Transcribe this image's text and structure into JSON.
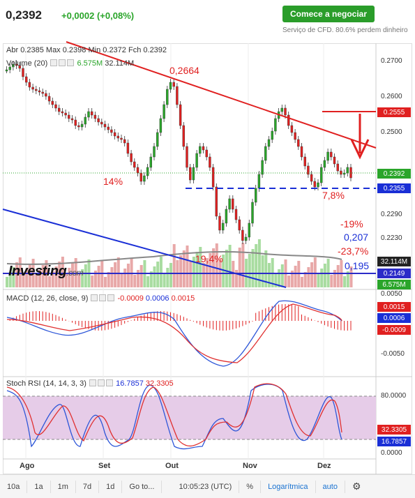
{
  "header": {
    "price": "0,2392",
    "change": "+0,0002 (+0,08%)",
    "cta_label": "Comece a negociar",
    "disclaimer": "Serviço de CFD. 80.6% perdem dinheiro"
  },
  "legend": {
    "abr_label": "Abr",
    "abr": "0.2385",
    "max_label": "Max",
    "max": "0.2398",
    "min_label": "Min",
    "min": "0.2372",
    "fch_label": "Fch",
    "fch": "0.2392",
    "volume_label": "Volume (20)",
    "volume_a": "6.575M",
    "volume_b": "32.114M"
  },
  "price_axis": [
    "0.2700",
    "0.2600",
    "0.2500",
    "0.2290",
    "0.2230"
  ],
  "price_tags": {
    "resist": "0.2555",
    "last": "0.2392",
    "support": "0.2355",
    "vol_avg": "32.114M",
    "low_line": "0.2149",
    "vol": "6.575M"
  },
  "annotations": {
    "peak": "0,2664",
    "pct14": "14%",
    "pct78": "7,8%",
    "pct19": "-19%",
    "v207": "0,207",
    "pct237": "-23,7%",
    "pct194": "19,4%",
    "v195": "0,195"
  },
  "logo": {
    "text": "Investing",
    "suffix": ".com"
  },
  "macd": {
    "label": "MACD (12, 26, close, 9)",
    "v1": "-0.0009",
    "v2": "0.0006",
    "v3": "0.0015",
    "axis": [
      "0.0050",
      "-0.0050"
    ],
    "tags": [
      "0.0015",
      "0.0006",
      "-0.0009"
    ]
  },
  "rsi": {
    "label": "Stoch RSI (14, 14, 3, 3)",
    "v1": "16.7857",
    "v2": "32.3305",
    "axis": [
      "80.0000",
      "0.0000"
    ],
    "tags": [
      "32.3305",
      "16.7857"
    ]
  },
  "dates": [
    "Ago",
    "Set",
    "Out",
    "Nov",
    "Dez"
  ],
  "toolbar": {
    "items": [
      "10a",
      "1a",
      "1m",
      "7d",
      "1d",
      "Go to...",
      "10:05:23 (UTC)",
      "%",
      "Logarítmica",
      "auto"
    ]
  },
  "colors": {
    "up": "#2aa52a",
    "down": "#e02020",
    "support": "#1a2fd6",
    "rsi_band": "#e6cce8"
  }
}
